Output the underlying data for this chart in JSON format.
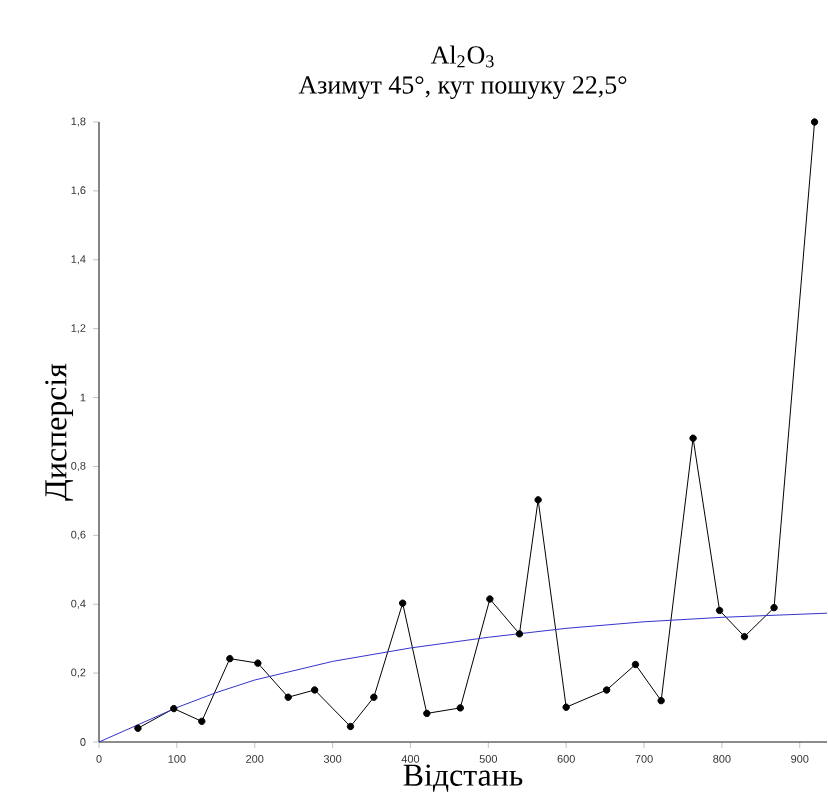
{
  "chart_data": {
    "type": "line",
    "title": "Al$_{2}$O$_{3}$",
    "subtitle": "Азимут 45°, кут пошуку 22,5°",
    "xlabel": "Відстань",
    "ylabel": "Дисперсія",
    "xlim": [
      0,
      935
    ],
    "ylim": [
      0,
      1.8
    ],
    "xticks": [
      0,
      100,
      200,
      300,
      400,
      500,
      600,
      700,
      800,
      900
    ],
    "yticks": [
      0,
      {
        "value": 0.2,
        "label": "0,2"
      },
      {
        "value": 0.4,
        "label": "0,4"
      },
      {
        "value": 0.6,
        "label": "0,6"
      },
      {
        "value": 0.8,
        "label": "0,8"
      },
      1,
      {
        "value": 1.2,
        "label": "1,2"
      },
      {
        "value": 1.4,
        "label": "1,4"
      },
      {
        "value": 1.6,
        "label": "1,6"
      },
      {
        "value": 1.8,
        "label": "1,8"
      }
    ],
    "grid": false,
    "series": [
      {
        "color": "#000000",
        "marker": "circle",
        "x": [
          50,
          96,
          132,
          168,
          204,
          243,
          277,
          323,
          353,
          390,
          421,
          464,
          502,
          540,
          564,
          600,
          652,
          689,
          722,
          763,
          797,
          829,
          867,
          919
        ],
        "values": [
          0.04,
          0.097,
          0.06,
          0.242,
          0.229,
          0.13,
          0.151,
          0.045,
          0.13,
          0.403,
          0.083,
          0.099,
          0.415,
          0.314,
          0.703,
          0.101,
          0.151,
          0.225,
          0.12,
          0.882,
          0.382,
          0.306,
          0.39,
          1.8
        ]
      },
      {
        "type": "line",
        "color": "#3333cc",
        "marker": "none",
        "x": [
          0,
          50,
          100,
          150,
          200,
          300,
          400,
          500,
          600,
          700,
          800,
          935
        ],
        "values": [
          0,
          0.05,
          0.1,
          0.143,
          0.18,
          0.234,
          0.273,
          0.304,
          0.33,
          0.349,
          0.362,
          0.374
        ]
      }
    ]
  }
}
